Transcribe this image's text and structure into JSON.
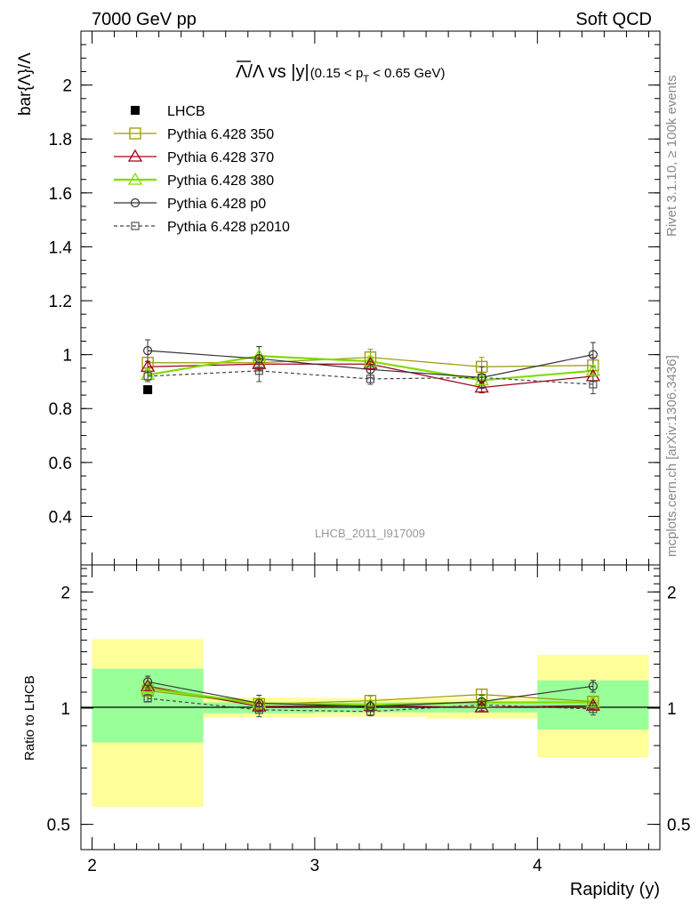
{
  "header": {
    "left": "7000 GeV pp",
    "right": "Soft QCD"
  },
  "side_labels": {
    "upper": "Rivet 3.1.10, ≥ 100k events",
    "lower": "mcplots.cern.ch [arXiv:1306.3436]"
  },
  "watermark": "LHCB_2011_I917009",
  "chart_data": [
    {
      "type": "line",
      "panel": "main",
      "title": {
        "lambda_bar": "Λ",
        "mid": "/Λ vs |y|",
        "sub_open": "(0.15 < p",
        "sub_index": "T",
        "sub_close": " < 0.65 GeV)"
      },
      "ylabel": "bar{Λ}/Λ",
      "xlim": [
        1.95,
        4.55
      ],
      "ylim": [
        0.22,
        2.2
      ],
      "y_ticks": [
        0.4,
        0.6,
        0.8,
        1,
        1.2,
        1.4,
        1.6,
        1.8,
        2
      ],
      "y_tick_labels": [
        "0.4",
        "0.6",
        "0.8",
        "1",
        "1.2",
        "1.4",
        "1.6",
        "1.8",
        "2"
      ],
      "legend_position": "top-left",
      "x": [
        2.25,
        2.75,
        3.25,
        3.75,
        4.25
      ],
      "series": [
        {
          "name": "LHCB",
          "color": "#000000",
          "marker": "filled-square",
          "line": "none",
          "values": [
            0.87,
            null,
            null,
            null,
            null
          ]
        },
        {
          "name": "Pythia 6.428 350",
          "color": "#999900",
          "marker": "open-square",
          "line": "solid",
          "values": [
            0.97,
            0.97,
            0.99,
            0.955,
            0.96
          ],
          "errors": [
            0.02,
            0.03,
            0.03,
            0.035,
            0.03
          ]
        },
        {
          "name": "Pythia 6.428 370",
          "color": "#a00018",
          "marker": "open-triangle",
          "line": "solid",
          "values": [
            0.955,
            0.965,
            0.965,
            0.878,
            0.92
          ],
          "errors": [
            0.02,
            0.02,
            0.02,
            0.02,
            0.02
          ]
        },
        {
          "name": "Pythia 6.428 380",
          "color": "#7fdd00",
          "marker": "open-triangle",
          "line": "solid-thick",
          "values": [
            0.925,
            0.995,
            0.975,
            0.905,
            0.94
          ],
          "errors": [
            0.02,
            0.035,
            0.02,
            0.02,
            0.02
          ]
        },
        {
          "name": "Pythia 6.428 p0",
          "color": "#333333",
          "marker": "open-circle",
          "line": "solid",
          "values": [
            1.015,
            0.985,
            0.945,
            0.915,
            1.0
          ],
          "errors": [
            0.04,
            0.045,
            0.03,
            0.04,
            0.045
          ]
        },
        {
          "name": "Pythia 6.428 p2010",
          "color": "#444444",
          "marker": "small-open-square",
          "line": "dashed",
          "values": [
            0.92,
            0.94,
            0.91,
            0.915,
            0.89
          ],
          "errors": [
            0.02,
            0.04,
            0.02,
            0.02,
            0.035
          ]
        }
      ]
    },
    {
      "type": "line",
      "panel": "ratio",
      "ylabel": "Ratio to LHCB",
      "xlabel": "Rapidity (y)",
      "scale": "log",
      "xlim": [
        1.95,
        4.55
      ],
      "ylim": [
        0.43,
        2.35
      ],
      "y_ticks": [
        0.5,
        1,
        2
      ],
      "y_tick_labels": [
        "0.5",
        "1",
        "2"
      ],
      "x_ticks": [
        2,
        3,
        4
      ],
      "x_tick_labels": [
        "2",
        "3",
        "4"
      ],
      "reference_line": 1,
      "bins": [
        [
          2.0,
          2.5
        ],
        [
          2.5,
          3.0
        ],
        [
          3.0,
          3.5
        ],
        [
          3.5,
          4.0
        ],
        [
          4.0,
          4.5
        ]
      ],
      "band_inner": [
        [
          0.815,
          1.265
        ],
        [
          0.97,
          1.035
        ],
        [
          0.975,
          1.035
        ],
        [
          0.975,
          1.03
        ],
        [
          0.88,
          1.18
        ]
      ],
      "band_outer": [
        [
          0.555,
          1.51
        ],
        [
          0.945,
          1.065
        ],
        [
          0.95,
          1.06
        ],
        [
          0.94,
          1.06
        ],
        [
          0.745,
          1.375
        ]
      ],
      "band_colors": {
        "inner": "#99ff99",
        "outer": "#ffff99"
      },
      "x": [
        2.25,
        2.75,
        3.25,
        3.75,
        4.25
      ],
      "series": [
        {
          "name": "Pythia 6.428 350",
          "color": "#999900",
          "marker": "open-square",
          "line": "solid",
          "values": [
            1.11,
            1.025,
            1.045,
            1.085,
            1.04
          ],
          "errors": [
            0.025,
            0.03,
            0.03,
            0.035,
            0.03
          ]
        },
        {
          "name": "Pythia 6.428 370",
          "color": "#a00018",
          "marker": "open-triangle",
          "line": "solid",
          "values": [
            1.14,
            1.01,
            1.015,
            1.005,
            1.015
          ],
          "errors": [
            0.02,
            0.02,
            0.02,
            0.02,
            0.02
          ]
        },
        {
          "name": "Pythia 6.428 380",
          "color": "#7fdd00",
          "marker": "open-triangle",
          "line": "solid-thick",
          "values": [
            1.125,
            1.03,
            1.02,
            1.035,
            1.035
          ],
          "errors": [
            0.02,
            0.03,
            0.02,
            0.02,
            0.02
          ]
        },
        {
          "name": "Pythia 6.428 p0",
          "color": "#333333",
          "marker": "open-circle",
          "line": "solid",
          "values": [
            1.17,
            1.03,
            1.01,
            1.04,
            1.14
          ],
          "errors": [
            0.04,
            0.05,
            0.03,
            0.04,
            0.04
          ]
        },
        {
          "name": "Pythia 6.428 p2010",
          "color": "#444444",
          "marker": "small-open-square",
          "line": "dashed",
          "values": [
            1.06,
            0.99,
            0.98,
            1.02,
            0.995
          ],
          "errors": [
            0.02,
            0.04,
            0.025,
            0.02,
            0.035
          ]
        }
      ]
    }
  ]
}
